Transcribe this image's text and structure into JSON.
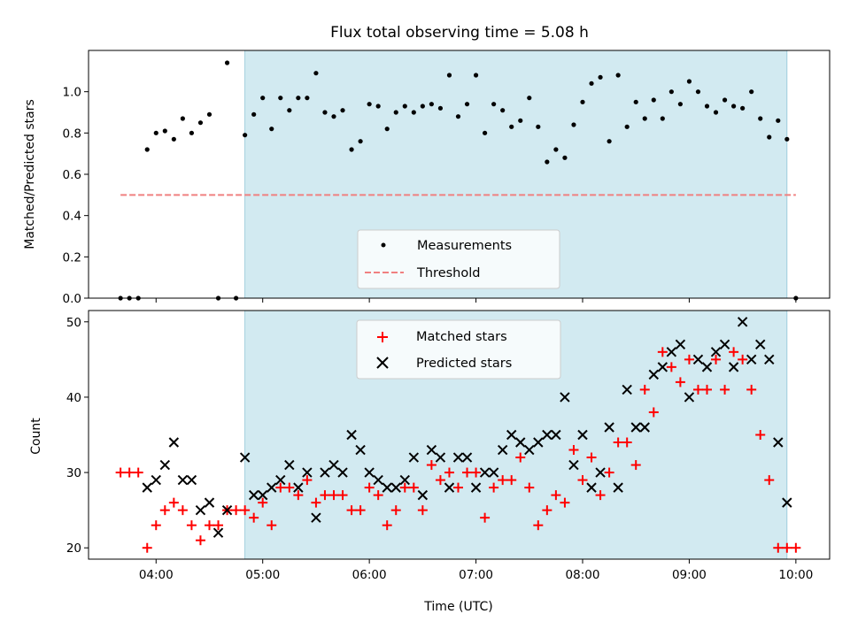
{
  "colors": {
    "observing_span": "#add8e6",
    "measurement": "#000000",
    "threshold": "#f08080",
    "matched": "#ff0000",
    "predicted": "#000000"
  },
  "chart_data": [
    {
      "type": "scatter",
      "title": "Flux total observing time = 5.08 h",
      "xlabel": "",
      "ylabel": "Matched/Predicted stars",
      "xlim": [
        "03:22",
        "10:19"
      ],
      "ylim": [
        0,
        1.2
      ],
      "yticks": [
        "0.0",
        "0.2",
        "0.4",
        "0.6",
        "0.8",
        "1.0"
      ],
      "grid": false,
      "legend_position": "lower center",
      "observing_span": [
        "04:50",
        "09:55"
      ],
      "series": [
        {
          "name": "Measurements",
          "marker": "dot",
          "x": [
            "03:40",
            "03:45",
            "03:50",
            "03:55",
            "04:00",
            "04:05",
            "04:10",
            "04:15",
            "04:20",
            "04:25",
            "04:30",
            "04:35",
            "04:40",
            "04:45",
            "04:50",
            "04:55",
            "05:00",
            "05:05",
            "05:10",
            "05:15",
            "05:20",
            "05:25",
            "05:30",
            "05:35",
            "05:40",
            "05:45",
            "05:50",
            "05:55",
            "06:00",
            "06:05",
            "06:10",
            "06:15",
            "06:20",
            "06:25",
            "06:30",
            "06:35",
            "06:40",
            "06:45",
            "06:50",
            "06:55",
            "07:00",
            "07:05",
            "07:10",
            "07:15",
            "07:20",
            "07:25",
            "07:30",
            "07:35",
            "07:40",
            "07:45",
            "07:50",
            "07:55",
            "08:00",
            "08:05",
            "08:10",
            "08:15",
            "08:20",
            "08:25",
            "08:30",
            "08:35",
            "08:40",
            "08:45",
            "08:50",
            "08:55",
            "09:00",
            "09:05",
            "09:10",
            "09:15",
            "09:20",
            "09:25",
            "09:30",
            "09:35",
            "09:40",
            "09:45",
            "09:50",
            "09:55",
            "10:00"
          ],
          "y": [
            0.0,
            0.0,
            0.0,
            0.72,
            0.8,
            0.81,
            0.77,
            0.87,
            0.8,
            0.85,
            0.89,
            0.0,
            1.14,
            0.0,
            0.79,
            0.89,
            0.97,
            0.82,
            0.97,
            0.91,
            0.97,
            0.97,
            1.09,
            0.9,
            0.88,
            0.91,
            0.72,
            0.76,
            0.94,
            0.93,
            0.82,
            0.9,
            0.93,
            0.9,
            0.93,
            0.94,
            0.92,
            1.08,
            0.88,
            0.94,
            1.08,
            0.8,
            0.94,
            0.91,
            0.83,
            0.86,
            0.97,
            0.83,
            0.66,
            0.72,
            0.68,
            0.84,
            0.95,
            1.04,
            1.07,
            0.76,
            1.08,
            0.83,
            0.95,
            0.87,
            0.96,
            0.87,
            1.0,
            0.94,
            1.05,
            1.0,
            0.93,
            0.9,
            0.96,
            0.93,
            0.92,
            1.0,
            0.87,
            0.78,
            0.86,
            0.77,
            0.0
          ]
        },
        {
          "name": "Threshold",
          "marker": "dashed-line",
          "x": [
            "03:40",
            "10:00"
          ],
          "y": [
            0.5,
            0.5
          ]
        }
      ]
    },
    {
      "type": "scatter",
      "title": "",
      "xlabel": "Time (UTC)",
      "ylabel": "Count",
      "xlim": [
        "03:22",
        "10:19"
      ],
      "ylim": [
        18.5,
        51.5
      ],
      "xticks": [
        "04:00",
        "05:00",
        "06:00",
        "07:00",
        "08:00",
        "09:00",
        "10:00"
      ],
      "yticks": [
        "20",
        "30",
        "40",
        "50"
      ],
      "grid": false,
      "legend_position": "upper center",
      "observing_span": [
        "04:50",
        "09:55"
      ],
      "series": [
        {
          "name": "Matched stars",
          "marker": "plus",
          "x": [
            "03:40",
            "03:45",
            "03:50",
            "03:55",
            "04:00",
            "04:05",
            "04:10",
            "04:15",
            "04:20",
            "04:25",
            "04:30",
            "04:35",
            "04:40",
            "04:45",
            "04:50",
            "04:55",
            "05:00",
            "05:05",
            "05:10",
            "05:15",
            "05:20",
            "05:25",
            "05:30",
            "05:35",
            "05:40",
            "05:45",
            "05:50",
            "05:55",
            "06:00",
            "06:05",
            "06:10",
            "06:15",
            "06:20",
            "06:25",
            "06:30",
            "06:35",
            "06:40",
            "06:45",
            "06:50",
            "06:55",
            "07:00",
            "07:05",
            "07:10",
            "07:15",
            "07:20",
            "07:25",
            "07:30",
            "07:35",
            "07:40",
            "07:45",
            "07:50",
            "07:55",
            "08:00",
            "08:05",
            "08:10",
            "08:15",
            "08:20",
            "08:25",
            "08:30",
            "08:35",
            "08:40",
            "08:45",
            "08:50",
            "08:55",
            "09:00",
            "09:05",
            "09:10",
            "09:15",
            "09:20",
            "09:25",
            "09:30",
            "09:35",
            "09:40",
            "09:45",
            "09:50",
            "09:55",
            "10:00"
          ],
          "y": [
            30,
            30,
            30,
            20,
            23,
            25,
            26,
            25,
            23,
            21,
            23,
            23,
            25,
            25,
            25,
            24,
            26,
            23,
            28,
            28,
            27,
            29,
            26,
            27,
            27,
            27,
            25,
            25,
            28,
            27,
            23,
            25,
            28,
            28,
            25,
            31,
            29,
            30,
            28,
            30,
            30,
            24,
            28,
            29,
            29,
            32,
            28,
            23,
            25,
            27,
            26,
            33,
            29,
            32,
            27,
            30,
            34,
            34,
            31,
            41,
            38,
            46,
            44,
            42,
            45,
            41,
            41,
            45,
            41,
            46,
            45,
            41,
            35,
            29,
            20,
            20,
            20
          ]
        },
        {
          "name": "Predicted stars",
          "marker": "x",
          "x": [
            "03:55",
            "04:00",
            "04:05",
            "04:10",
            "04:15",
            "04:20",
            "04:25",
            "04:30",
            "04:35",
            "04:40",
            "04:50",
            "04:55",
            "05:00",
            "05:05",
            "05:10",
            "05:15",
            "05:20",
            "05:25",
            "05:30",
            "05:35",
            "05:40",
            "05:45",
            "05:50",
            "05:55",
            "06:00",
            "06:05",
            "06:10",
            "06:15",
            "06:20",
            "06:25",
            "06:30",
            "06:35",
            "06:40",
            "06:45",
            "06:50",
            "06:55",
            "07:00",
            "07:05",
            "07:10",
            "07:15",
            "07:20",
            "07:25",
            "07:30",
            "07:35",
            "07:40",
            "07:45",
            "07:50",
            "07:55",
            "08:00",
            "08:05",
            "08:10",
            "08:15",
            "08:20",
            "08:25",
            "08:30",
            "08:35",
            "08:40",
            "08:45",
            "08:50",
            "08:55",
            "09:00",
            "09:05",
            "09:10",
            "09:15",
            "09:20",
            "09:25",
            "09:30",
            "09:35",
            "09:40",
            "09:45",
            "09:50",
            "09:55"
          ],
          "y": [
            28,
            29,
            31,
            34,
            29,
            29,
            25,
            26,
            22,
            25,
            32,
            27,
            27,
            28,
            29,
            31,
            28,
            30,
            24,
            30,
            31,
            30,
            35,
            33,
            30,
            29,
            28,
            28,
            29,
            32,
            27,
            33,
            32,
            28,
            32,
            32,
            28,
            30,
            30,
            33,
            35,
            34,
            33,
            34,
            35,
            35,
            40,
            31,
            35,
            28,
            30,
            36,
            28,
            41,
            36,
            36,
            43,
            44,
            46,
            47,
            40,
            45,
            44,
            46,
            47,
            44,
            50,
            45,
            47,
            45,
            34,
            26
          ]
        }
      ]
    }
  ]
}
